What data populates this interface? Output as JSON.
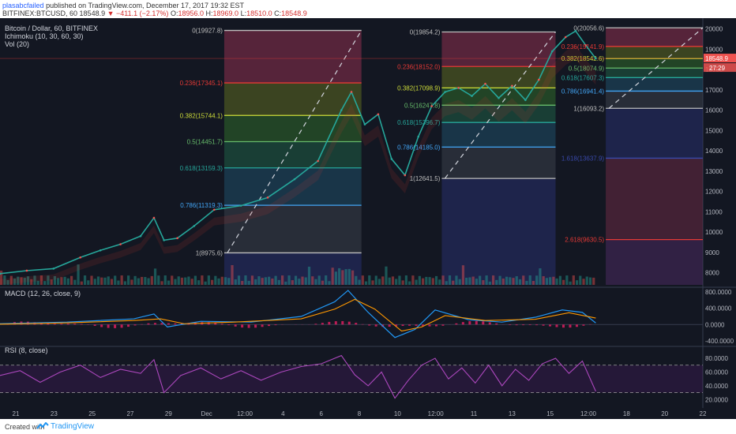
{
  "header": {
    "author": "plasabcfailed",
    "published": "published on TradingView.com, December 17, 2017 19:32 EST",
    "symbol": "BITFINEX:BTCUSD, 60",
    "last": "18548.9",
    "arrow": "▼",
    "change": "−411.1 (−2.17%)",
    "o_label": "O:",
    "o": "18956.0",
    "h_label": "H:",
    "h": "18969.0",
    "l_label": "L:",
    "l": "18510.0",
    "c_label": "C:",
    "c": "18548.9"
  },
  "legend": {
    "title": "Bitcoin / Dollar, 60, BITFINEX",
    "ichimoku": "Ichimoku (10, 30, 60, 30)",
    "vol": "Vol (20)"
  },
  "footer": {
    "created_with": "Created with",
    "brand": "TradingView"
  },
  "chart_data": {
    "type": "line",
    "title": "Bitcoin / Dollar, 60, BITFINEX",
    "price_axis": {
      "ticks": [
        20000,
        19000,
        18000,
        17000,
        16000,
        15000,
        14000,
        13000,
        12000,
        11000,
        10000,
        9000,
        8000
      ],
      "ylim": [
        7400,
        20300
      ],
      "last_price_label": "18548.9",
      "countdown_label": "27:29"
    },
    "x_ticks": [
      "21",
      "23",
      "25",
      "27",
      "29",
      "Dec",
      "12:00",
      "4",
      "6",
      "8",
      "10",
      "12:00",
      "11",
      "13",
      "15",
      "12:00",
      "18",
      "20",
      "22"
    ],
    "price_series": [
      {
        "x": 0,
        "y": 7950
      },
      {
        "x": 8,
        "y": 8100
      },
      {
        "x": 16,
        "y": 8200
      },
      {
        "x": 24,
        "y": 8750
      },
      {
        "x": 30,
        "y": 9100
      },
      {
        "x": 36,
        "y": 9400
      },
      {
        "x": 42,
        "y": 9800
      },
      {
        "x": 46,
        "y": 10700
      },
      {
        "x": 49,
        "y": 9600
      },
      {
        "x": 53,
        "y": 9700
      },
      {
        "x": 58,
        "y": 10300
      },
      {
        "x": 64,
        "y": 11100
      },
      {
        "x": 72,
        "y": 11300
      },
      {
        "x": 80,
        "y": 11700
      },
      {
        "x": 88,
        "y": 12600
      },
      {
        "x": 95,
        "y": 13500
      },
      {
        "x": 102,
        "y": 16000
      },
      {
        "x": 105,
        "y": 16900
      },
      {
        "x": 109,
        "y": 15300
      },
      {
        "x": 113,
        "y": 15800
      },
      {
        "x": 117,
        "y": 13600
      },
      {
        "x": 121,
        "y": 12800
      },
      {
        "x": 125,
        "y": 14700
      },
      {
        "x": 129,
        "y": 16200
      },
      {
        "x": 133,
        "y": 16900
      },
      {
        "x": 137,
        "y": 17100
      },
      {
        "x": 141,
        "y": 16700
      },
      {
        "x": 145,
        "y": 17300
      },
      {
        "x": 149,
        "y": 16600
      },
      {
        "x": 153,
        "y": 17200
      },
      {
        "x": 157,
        "y": 16500
      },
      {
        "x": 161,
        "y": 17500
      },
      {
        "x": 165,
        "y": 18900
      },
      {
        "x": 169,
        "y": 19600
      },
      {
        "x": 172,
        "y": 19900
      },
      {
        "x": 175,
        "y": 19200
      },
      {
        "x": 178,
        "y": 18549
      }
    ],
    "x_range": [
      0,
      210
    ],
    "fib_sets": [
      {
        "x_start": 67,
        "x_end": 108,
        "zones": [
          {
            "from": 19927.8,
            "to": 17345.1,
            "color": "#8e2f4e"
          },
          {
            "from": 17345.1,
            "to": 15744.1,
            "color": "#5c6a20"
          },
          {
            "from": 15744.1,
            "to": 14451.7,
            "color": "#2f6a2a"
          },
          {
            "from": 14451.7,
            "to": 13159.3,
            "color": "#1f5e46"
          },
          {
            "from": 13159.3,
            "to": 11319.3,
            "color": "#1f4f68"
          },
          {
            "from": 11319.3,
            "to": 8975.6,
            "color": "#3b3f4a"
          },
          {
            "from": 8975.6,
            "to": 7300,
            "color": "#28306e"
          }
        ],
        "levels": [
          {
            "label": "0(19927.8)",
            "value": 19927.8,
            "color": "#bdbdbd"
          },
          {
            "label": "0.236(17345.1)",
            "value": 17345.1,
            "color": "#e53935"
          },
          {
            "label": "0.382(15744.1)",
            "value": 15744.1,
            "color": "#cddc39"
          },
          {
            "label": "0.5(14451.7)",
            "value": 14451.7,
            "color": "#66bb6a"
          },
          {
            "label": "0.618(13159.3)",
            "value": 13159.3,
            "color": "#26a69a"
          },
          {
            "label": "0.786(11319.3)",
            "value": 11319.3,
            "color": "#42a5f5"
          },
          {
            "label": "1(8975.6)",
            "value": 8975.6,
            "color": "#bdbdbd"
          }
        ]
      },
      {
        "x_start": 132,
        "x_end": 166,
        "zones": [
          {
            "from": 19854.2,
            "to": 18152.0,
            "color": "#8e2f4e"
          },
          {
            "from": 18152.0,
            "to": 17098.9,
            "color": "#5c6a20"
          },
          {
            "from": 17098.9,
            "to": 16247.8,
            "color": "#2f6a2a"
          },
          {
            "from": 16247.8,
            "to": 15396.7,
            "color": "#1f5e46"
          },
          {
            "from": 15396.7,
            "to": 14185.0,
            "color": "#1f4f68"
          },
          {
            "from": 14185.0,
            "to": 12641.5,
            "color": "#3b3f4a"
          },
          {
            "from": 12641.5,
            "to": 7300,
            "color": "#28306e"
          }
        ],
        "levels": [
          {
            "label": "0(19854.2)",
            "value": 19854.2,
            "color": "#bdbdbd"
          },
          {
            "label": "0.236(18152.0)",
            "value": 18152.0,
            "color": "#e53935"
          },
          {
            "label": "0.382(17098.9)",
            "value": 17098.9,
            "color": "#cddc39"
          },
          {
            "label": "0.5(16247.8)",
            "value": 16247.8,
            "color": "#66bb6a"
          },
          {
            "label": "0.618(15396.7)",
            "value": 15396.7,
            "color": "#26a69a"
          },
          {
            "label": "0.786(14185.0)",
            "value": 14185.0,
            "color": "#42a5f5"
          },
          {
            "label": "1(12641.5)",
            "value": 12641.5,
            "color": "#bdbdbd"
          }
        ]
      },
      {
        "x_start": 181,
        "x_end": 210,
        "zones": [
          {
            "from": 20056.6,
            "to": 19141.9,
            "color": "#8e2f4e"
          },
          {
            "from": 19141.9,
            "to": 18542.6,
            "color": "#5c6a20"
          },
          {
            "from": 18542.6,
            "to": 18074.9,
            "color": "#2f6a2a"
          },
          {
            "from": 18074.9,
            "to": 17607.3,
            "color": "#1f5e46"
          },
          {
            "from": 17607.3,
            "to": 16941.4,
            "color": "#1f4f68"
          },
          {
            "from": 16941.4,
            "to": 16093.2,
            "color": "#3b3f4a"
          },
          {
            "from": 16093.2,
            "to": 13637.9,
            "color": "#28306e"
          },
          {
            "from": 13637.9,
            "to": 9630.5,
            "color": "#6a2a44"
          },
          {
            "from": 9630.5,
            "to": 7300,
            "color": "#4a2a60"
          }
        ],
        "levels": [
          {
            "label": "0(20056.6)",
            "value": 20056.6,
            "color": "#bdbdbd"
          },
          {
            "label": "0.236(19141.9)",
            "value": 19141.9,
            "color": "#e53935"
          },
          {
            "label": "0.382(18542.6)",
            "value": 18542.6,
            "color": "#cddc39"
          },
          {
            "label": "0.5(18074.9)",
            "value": 18074.9,
            "color": "#66bb6a"
          },
          {
            "label": "0.618(17607.3)",
            "value": 17607.3,
            "color": "#26a69a"
          },
          {
            "label": "0.786(16941.4)",
            "value": 16941.4,
            "color": "#42a5f5"
          },
          {
            "label": "1(16093.2)",
            "value": 16093.2,
            "color": "#bdbdbd"
          },
          {
            "label": "1.618(13637.9)",
            "value": 13637.9,
            "color": "#3949ab"
          },
          {
            "label": "2.618(9630.5)",
            "value": 9630.5,
            "color": "#e53935"
          }
        ]
      }
    ],
    "macd": {
      "title": "MACD (12, 26, close, 9)",
      "ticks": [
        "800.0000",
        "400.0000",
        "0.0000",
        "-400.0000"
      ],
      "tick_values": [
        800,
        400,
        0,
        -400
      ],
      "ylim": [
        -500,
        900
      ],
      "macd_series": [
        {
          "x": 0,
          "y": 20
        },
        {
          "x": 20,
          "y": 60
        },
        {
          "x": 40,
          "y": 140
        },
        {
          "x": 46,
          "y": 260
        },
        {
          "x": 50,
          "y": -60
        },
        {
          "x": 60,
          "y": 80
        },
        {
          "x": 75,
          "y": 60
        },
        {
          "x": 90,
          "y": 200
        },
        {
          "x": 100,
          "y": 560
        },
        {
          "x": 104,
          "y": 840
        },
        {
          "x": 110,
          "y": 300
        },
        {
          "x": 118,
          "y": -320
        },
        {
          "x": 124,
          "y": -120
        },
        {
          "x": 130,
          "y": 360
        },
        {
          "x": 140,
          "y": 120
        },
        {
          "x": 150,
          "y": 60
        },
        {
          "x": 160,
          "y": 180
        },
        {
          "x": 168,
          "y": 360
        },
        {
          "x": 174,
          "y": 300
        },
        {
          "x": 178,
          "y": 40
        }
      ],
      "signal_series": [
        {
          "x": 0,
          "y": 10
        },
        {
          "x": 20,
          "y": 40
        },
        {
          "x": 40,
          "y": 100
        },
        {
          "x": 48,
          "y": 140
        },
        {
          "x": 55,
          "y": 20
        },
        {
          "x": 70,
          "y": 60
        },
        {
          "x": 90,
          "y": 140
        },
        {
          "x": 100,
          "y": 380
        },
        {
          "x": 106,
          "y": 620
        },
        {
          "x": 112,
          "y": 380
        },
        {
          "x": 120,
          "y": -160
        },
        {
          "x": 126,
          "y": -60
        },
        {
          "x": 133,
          "y": 220
        },
        {
          "x": 145,
          "y": 100
        },
        {
          "x": 160,
          "y": 130
        },
        {
          "x": 170,
          "y": 290
        },
        {
          "x": 178,
          "y": 160
        }
      ]
    },
    "rsi": {
      "title": "RSI (8, close)",
      "ticks": [
        "80.0000",
        "60.0000",
        "40.0000",
        "20.0000"
      ],
      "tick_values": [
        80,
        60,
        40,
        20
      ],
      "upper": 70,
      "lower": 30,
      "ylim": [
        10,
        95
      ],
      "series": [
        {
          "x": 0,
          "y": 55
        },
        {
          "x": 6,
          "y": 62
        },
        {
          "x": 12,
          "y": 45
        },
        {
          "x": 18,
          "y": 60
        },
        {
          "x": 24,
          "y": 70
        },
        {
          "x": 30,
          "y": 52
        },
        {
          "x": 36,
          "y": 64
        },
        {
          "x": 42,
          "y": 58
        },
        {
          "x": 46,
          "y": 78
        },
        {
          "x": 49,
          "y": 30
        },
        {
          "x": 54,
          "y": 55
        },
        {
          "x": 60,
          "y": 66
        },
        {
          "x": 66,
          "y": 50
        },
        {
          "x": 72,
          "y": 62
        },
        {
          "x": 78,
          "y": 48
        },
        {
          "x": 84,
          "y": 60
        },
        {
          "x": 90,
          "y": 68
        },
        {
          "x": 96,
          "y": 72
        },
        {
          "x": 102,
          "y": 84
        },
        {
          "x": 106,
          "y": 56
        },
        {
          "x": 110,
          "y": 40
        },
        {
          "x": 114,
          "y": 60
        },
        {
          "x": 118,
          "y": 22
        },
        {
          "x": 122,
          "y": 48
        },
        {
          "x": 126,
          "y": 70
        },
        {
          "x": 130,
          "y": 80
        },
        {
          "x": 134,
          "y": 50
        },
        {
          "x": 138,
          "y": 66
        },
        {
          "x": 142,
          "y": 44
        },
        {
          "x": 146,
          "y": 70
        },
        {
          "x": 150,
          "y": 40
        },
        {
          "x": 154,
          "y": 64
        },
        {
          "x": 158,
          "y": 48
        },
        {
          "x": 162,
          "y": 72
        },
        {
          "x": 166,
          "y": 80
        },
        {
          "x": 170,
          "y": 58
        },
        {
          "x": 174,
          "y": 76
        },
        {
          "x": 178,
          "y": 32
        }
      ]
    }
  }
}
